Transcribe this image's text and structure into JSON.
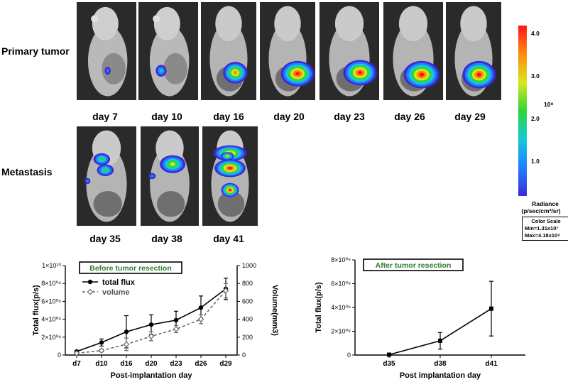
{
  "rows": {
    "primary": "Primary tumor",
    "metastasis": "Metastasis"
  },
  "primary_days": [
    "day 7",
    "day 10",
    "day 16",
    "day 20",
    "day 23",
    "day 26",
    "day 29"
  ],
  "metastasis_days": [
    "day 35",
    "day 38",
    "day 41"
  ],
  "color_scale": {
    "ticks": [
      "4.0",
      "3.0",
      "2.0",
      "1.0"
    ],
    "exponent": "10⁸",
    "title": "Radiance",
    "units": "(p/sec/cm²/sr)",
    "box_title": "Color Scale",
    "min": "Min=1.31x10⁷",
    "max": "Max=4.18x10⁸",
    "colors": [
      "#3b2bd3",
      "#1f7fff",
      "#16c8d8",
      "#2ed63a",
      "#d7e81e",
      "#ff8a12",
      "#ff1818"
    ]
  },
  "chart_data": [
    {
      "type": "line",
      "title": "Before tumor resection",
      "xlabel": "Post-implantation day",
      "ylabel": "Total flux(p/s)",
      "y2label": "Volume(mm3)",
      "categories": [
        "d7",
        "d10",
        "d16",
        "d20",
        "d23",
        "d26",
        "d29"
      ],
      "yticks": [
        "0",
        "2×10⁰⁹",
        "4×10⁰⁹",
        "6×10⁰⁹",
        "8×10⁰⁹",
        "1×10¹⁰"
      ],
      "y2ticks": [
        "0",
        "200",
        "400",
        "600",
        "800",
        "1000"
      ],
      "ylim": [
        0,
        10000000000
      ],
      "y2lim": [
        0,
        1000
      ],
      "legend_position": "top-left",
      "series": [
        {
          "name": "total flux",
          "axis": "left",
          "style": "solid",
          "marker": "circle",
          "color": "#000000",
          "values": [
            400000000,
            1400000000,
            2600000000,
            3400000000,
            3900000000,
            5300000000,
            7400000000
          ],
          "errors": [
            100000000,
            400000000,
            1800000000,
            1100000000,
            1000000000,
            1300000000,
            1200000000
          ]
        },
        {
          "name": "volume",
          "axis": "right",
          "style": "dashed",
          "marker": "diamond",
          "color": "#666666",
          "values": [
            20,
            50,
            120,
            210,
            290,
            400,
            720
          ],
          "errors": [
            10,
            15,
            70,
            50,
            40,
            50,
            80
          ]
        }
      ]
    },
    {
      "type": "line",
      "title": "After tumor resection",
      "xlabel": "Post implantation day",
      "ylabel": "Total flux(p/s)",
      "categories": [
        "d35",
        "d38",
        "d41"
      ],
      "yticks": [
        "0",
        "2×10⁰⁹",
        "4×10⁰⁹",
        "6×10⁰⁹",
        "8×10⁰⁹"
      ],
      "ylim": [
        0,
        8000000000
      ],
      "series": [
        {
          "axis": "left",
          "style": "solid",
          "marker": "square",
          "color": "#000000",
          "values": [
            30000000,
            1200000000,
            3900000000
          ],
          "errors": [
            30000000,
            700000000,
            2300000000
          ]
        }
      ]
    }
  ]
}
